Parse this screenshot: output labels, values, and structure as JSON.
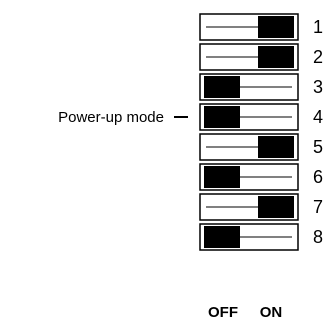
{
  "switches": [
    {
      "number": "1",
      "state": "ON"
    },
    {
      "number": "2",
      "state": "ON"
    },
    {
      "number": "3",
      "state": "OFF"
    },
    {
      "number": "4",
      "state": "OFF"
    },
    {
      "number": "5",
      "state": "ON"
    },
    {
      "number": "6",
      "state": "OFF"
    },
    {
      "number": "7",
      "state": "ON"
    },
    {
      "number": "8",
      "state": "OFF"
    }
  ],
  "annotation": {
    "label": "Power-up mode",
    "switch_number": "4"
  },
  "footer": {
    "off_label": "OFF",
    "on_label": "ON"
  },
  "colors": {
    "line": "#000000",
    "knob": "#000000",
    "background": "#ffffff"
  }
}
